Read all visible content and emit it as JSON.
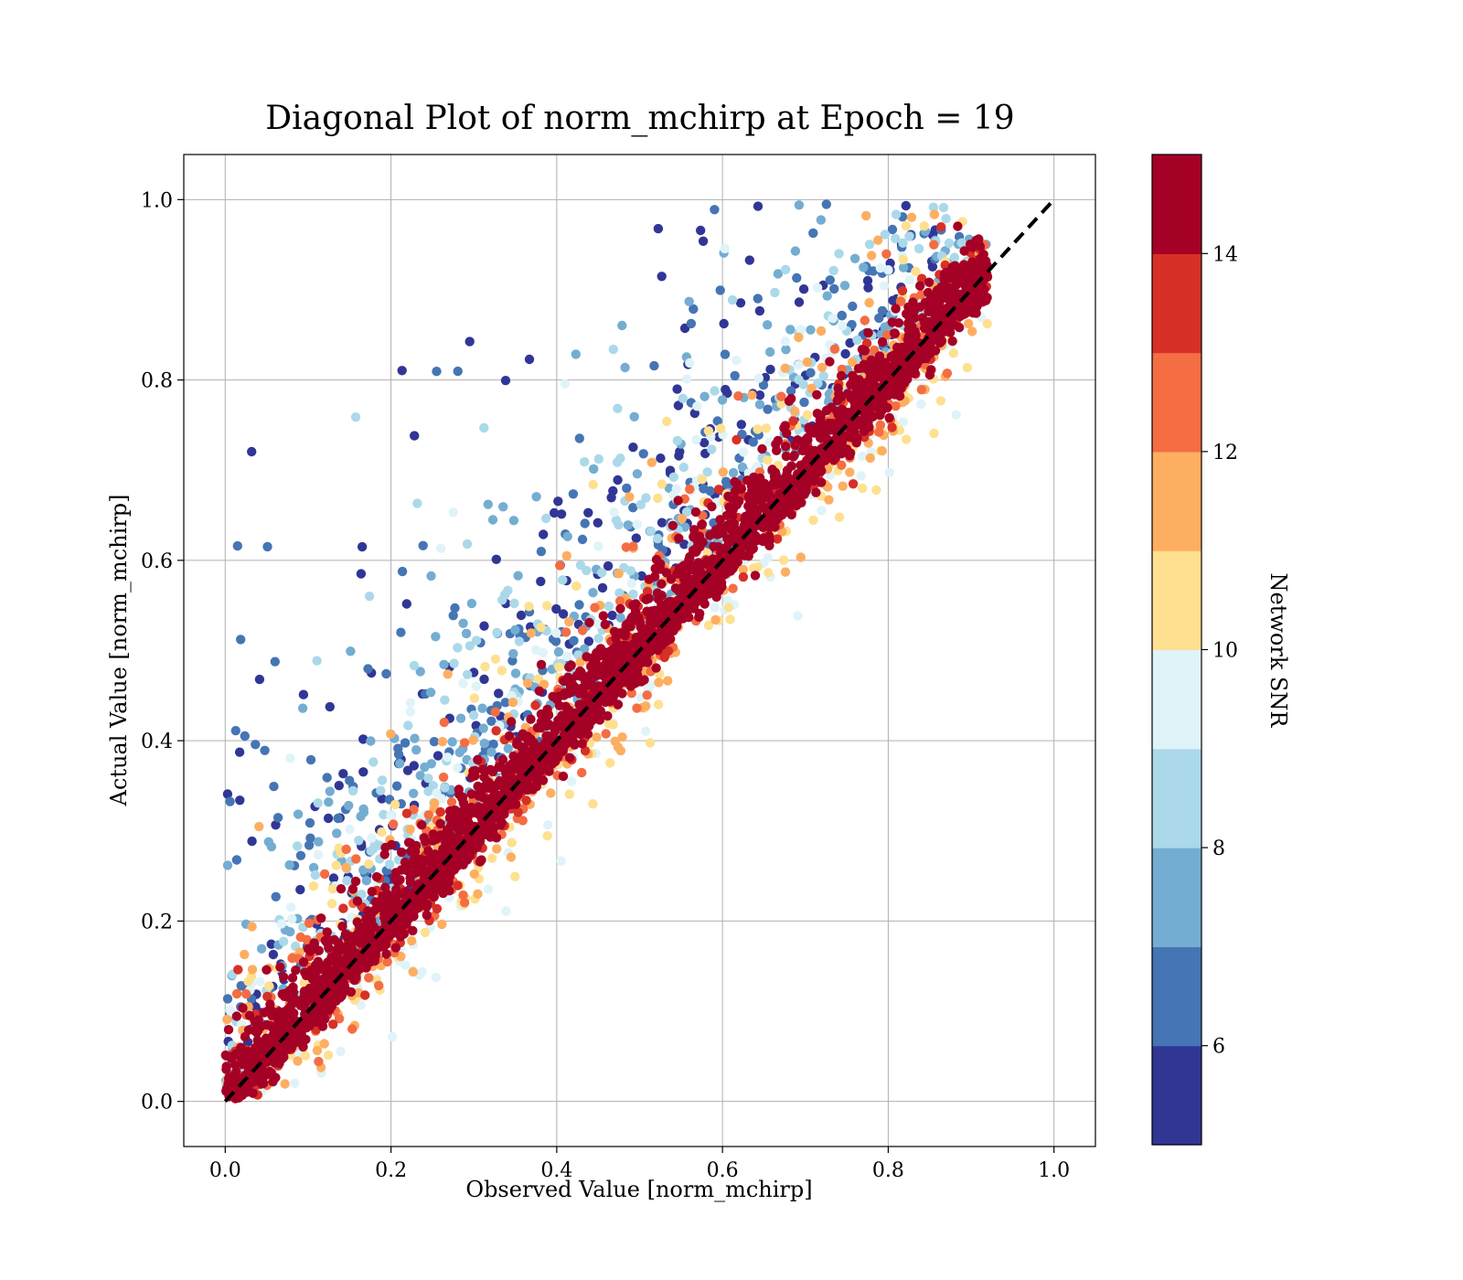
{
  "chart_data": {
    "type": "scatter",
    "title": "Diagonal Plot of norm_mchirp at Epoch = 19",
    "xlabel": "Observed Value [norm_mchirp]",
    "ylabel": "Actual Value [norm_mchirp]",
    "xlim": [
      -0.05,
      1.05
    ],
    "ylim": [
      -0.05,
      1.05
    ],
    "xticks": [
      "0.0",
      "0.2",
      "0.4",
      "0.6",
      "0.8",
      "1.0"
    ],
    "yticks": [
      "0.0",
      "0.2",
      "0.4",
      "0.6",
      "0.8",
      "1.0"
    ],
    "grid": true,
    "reference_line": {
      "style": "dashed",
      "color": "#000000",
      "from": [
        0,
        0
      ],
      "to": [
        1,
        1
      ]
    },
    "colorbar": {
      "label": "Network SNR",
      "range": [
        5,
        15
      ],
      "ticks": [
        "6",
        "8",
        "10",
        "12",
        "14"
      ],
      "tick_values": [
        6,
        8,
        10,
        12,
        14
      ],
      "colormap": "RdYlBu_r",
      "colors": [
        "#313695",
        "#4575b4",
        "#74add1",
        "#abd9e9",
        "#e0f3f8",
        "#fee090",
        "#fdae61",
        "#f46d43",
        "#d73027",
        "#a50026"
      ]
    },
    "description_of_points": "Tens of thousands of points; SNR near 14+ cluster tightly along the diagonal, low-SNR points scatter widely above the diagonal toward the upper-left."
  }
}
